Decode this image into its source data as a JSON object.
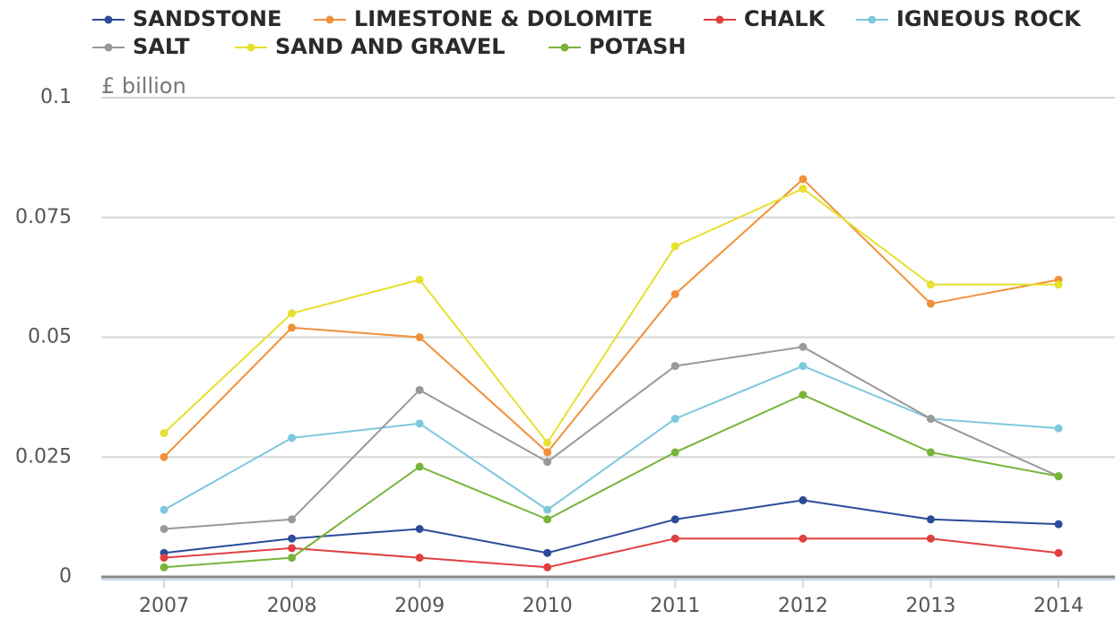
{
  "chart_data": {
    "type": "line",
    "y_axis_label": "£ billion",
    "categories": [
      "2007",
      "2008",
      "2009",
      "2010",
      "2011",
      "2012",
      "2013",
      "2014"
    ],
    "series": [
      {
        "name": "SANDSTONE",
        "color": "#2b4b99",
        "values": [
          0.005,
          0.008,
          0.01,
          0.005,
          0.012,
          0.016,
          0.012,
          0.011
        ]
      },
      {
        "name": "LIMESTONE & DOLOMITE",
        "color": "#f0913a",
        "values": [
          0.025,
          0.052,
          0.05,
          0.026,
          0.059,
          0.083,
          0.057,
          0.062
        ]
      },
      {
        "name": "CHALK",
        "color": "#e0403f",
        "values": [
          0.004,
          0.006,
          0.004,
          0.002,
          0.008,
          0.008,
          0.008,
          0.005
        ]
      },
      {
        "name": "IGNEOUS ROCK",
        "color": "#7ec8dc",
        "values": [
          0.014,
          0.029,
          0.032,
          0.014,
          0.033,
          0.044,
          0.033,
          0.031
        ]
      },
      {
        "name": "SALT",
        "color": "#999999",
        "values": [
          0.01,
          0.012,
          0.039,
          0.024,
          0.044,
          0.048,
          0.033,
          0.021
        ]
      },
      {
        "name": "SAND AND GRAVEL",
        "color": "#e6e02e",
        "values": [
          0.03,
          0.055,
          0.062,
          0.028,
          0.069,
          0.081,
          0.061,
          0.061
        ]
      },
      {
        "name": "POTASH",
        "color": "#78b43a",
        "values": [
          0.002,
          0.004,
          0.023,
          0.012,
          0.026,
          0.038,
          0.026,
          0.021
        ]
      }
    ],
    "ylim": [
      0,
      0.1
    ],
    "yticks": [
      0,
      0.025,
      0.05,
      0.075,
      0.1
    ],
    "grid": true
  }
}
